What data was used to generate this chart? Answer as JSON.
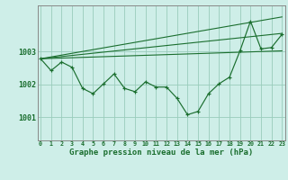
{
  "title": "Graphe pression niveau de la mer (hPa)",
  "background_color": "#ceeee8",
  "grid_color": "#99ccbb",
  "line_color": "#1a6e2e",
  "x_labels": [
    "0",
    "1",
    "2",
    "3",
    "4",
    "5",
    "6",
    "7",
    "8",
    "9",
    "10",
    "11",
    "12",
    "13",
    "14",
    "15",
    "16",
    "17",
    "18",
    "19",
    "20",
    "21",
    "22",
    "23"
  ],
  "y_ticks": [
    1001,
    1002,
    1003
  ],
  "ylim": [
    1000.3,
    1004.4
  ],
  "xlim": [
    -0.3,
    23.3
  ],
  "main_line_x": [
    0,
    1,
    2,
    3,
    4,
    5,
    6,
    7,
    8,
    9,
    10,
    11,
    12,
    13,
    14,
    15,
    16,
    17,
    18,
    19,
    20,
    21,
    22,
    23
  ],
  "main_line_y": [
    1002.78,
    1002.42,
    1002.68,
    1002.52,
    1001.88,
    1001.72,
    1002.02,
    1002.32,
    1001.88,
    1001.78,
    1002.08,
    1001.92,
    1001.92,
    1001.58,
    1001.08,
    1001.18,
    1001.72,
    1002.02,
    1002.22,
    1003.02,
    1003.92,
    1003.08,
    1003.12,
    1003.52
  ],
  "trend_line1": {
    "x": [
      0,
      23
    ],
    "y": [
      1002.78,
      1004.05
    ]
  },
  "trend_line2": {
    "x": [
      0,
      23
    ],
    "y": [
      1002.78,
      1003.55
    ]
  },
  "trend_line3": {
    "x": [
      0,
      23
    ],
    "y": [
      1002.78,
      1003.02
    ]
  }
}
